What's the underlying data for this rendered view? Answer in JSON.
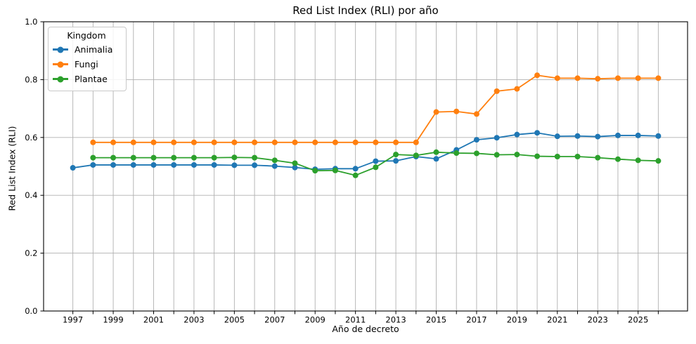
{
  "chart_data": {
    "type": "line",
    "title": "Red List Index (RLI) por año",
    "xlabel": "Año de decreto",
    "ylabel": "Red List Index (RLI)",
    "legend": {
      "title": "Kingdom",
      "position": "upper left"
    },
    "grid": true,
    "xlim": [
      1995.55,
      2027.45
    ],
    "ylim": [
      0.0,
      1.0
    ],
    "x_tick_years_labeled": [
      1997,
      1999,
      2001,
      2003,
      2005,
      2007,
      2009,
      2011,
      2013,
      2015,
      2017,
      2019,
      2021,
      2023,
      2025
    ],
    "x_tick_years_all": {
      "from": 1997,
      "to": 2026
    },
    "yticks": [
      0.0,
      0.2,
      0.4,
      0.6,
      0.8,
      1.0
    ],
    "yticklabels": [
      "0.0",
      "0.2",
      "0.4",
      "0.6",
      "0.8",
      "1.0"
    ],
    "series": [
      {
        "name": "Animalia",
        "color": "#1f77b4",
        "x": [
          1997,
          1998,
          1999,
          2000,
          2001,
          2002,
          2003,
          2004,
          2005,
          2006,
          2007,
          2008,
          2009,
          2010,
          2011,
          2012,
          2013,
          2014,
          2015,
          2016,
          2017,
          2018,
          2019,
          2020,
          2021,
          2022,
          2023,
          2024,
          2025,
          2026
        ],
        "values": [
          0.495,
          0.505,
          0.505,
          0.505,
          0.505,
          0.505,
          0.505,
          0.505,
          0.504,
          0.504,
          0.501,
          0.496,
          0.49,
          0.492,
          0.492,
          0.518,
          0.519,
          0.534,
          0.526,
          0.557,
          0.592,
          0.599,
          0.61,
          0.616,
          0.604,
          0.605,
          0.603,
          0.607,
          0.607,
          0.605
        ]
      },
      {
        "name": "Fungi",
        "color": "#ff7f0e",
        "x": [
          1998,
          1999,
          2000,
          2001,
          2002,
          2003,
          2004,
          2005,
          2006,
          2007,
          2008,
          2009,
          2010,
          2011,
          2012,
          2013,
          2014,
          2015,
          2016,
          2017,
          2018,
          2019,
          2020,
          2021,
          2022,
          2023,
          2024,
          2025,
          2026
        ],
        "values": [
          0.583,
          0.583,
          0.583,
          0.583,
          0.583,
          0.583,
          0.583,
          0.583,
          0.583,
          0.583,
          0.583,
          0.583,
          0.583,
          0.583,
          0.583,
          0.583,
          0.583,
          0.688,
          0.69,
          0.681,
          0.76,
          0.768,
          0.815,
          0.805,
          0.805,
          0.803,
          0.805,
          0.805,
          0.805
        ]
      },
      {
        "name": "Plantae",
        "color": "#2ca02c",
        "x": [
          1998,
          1999,
          2000,
          2001,
          2002,
          2003,
          2004,
          2005,
          2006,
          2007,
          2008,
          2009,
          2010,
          2011,
          2012,
          2013,
          2014,
          2015,
          2016,
          2017,
          2018,
          2019,
          2020,
          2021,
          2022,
          2023,
          2024,
          2025,
          2026
        ],
        "values": [
          0.53,
          0.53,
          0.53,
          0.53,
          0.53,
          0.53,
          0.53,
          0.531,
          0.53,
          0.521,
          0.511,
          0.485,
          0.486,
          0.469,
          0.497,
          0.541,
          0.538,
          0.549,
          0.546,
          0.545,
          0.54,
          0.541,
          0.535,
          0.534,
          0.534,
          0.53,
          0.525,
          0.521,
          0.519
        ]
      }
    ],
    "colors": {
      "grid": "#b0b0b0",
      "spine": "#000000",
      "background": "#ffffff",
      "text": "#000000"
    }
  }
}
